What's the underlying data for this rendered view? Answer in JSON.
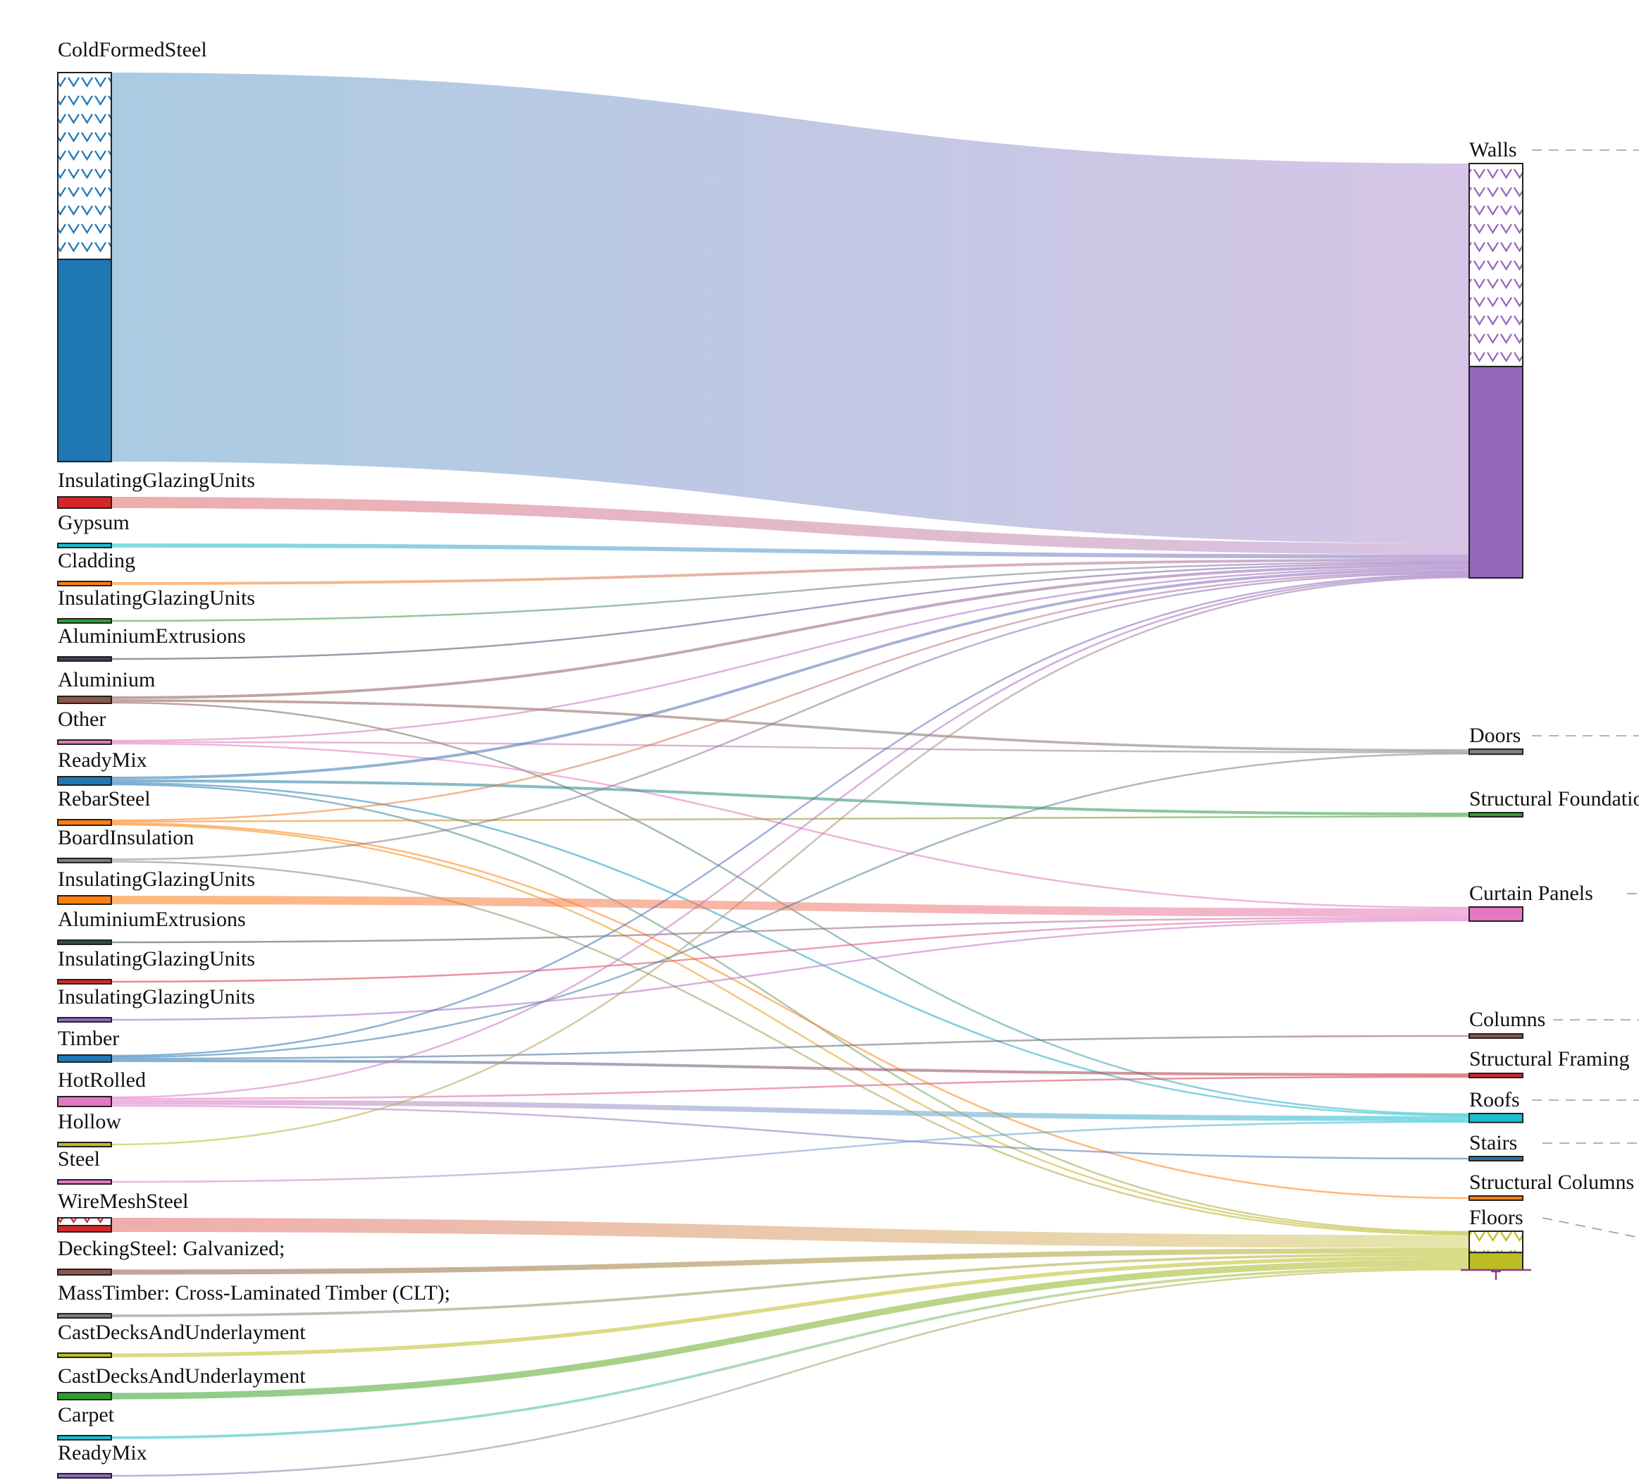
{
  "diagram": {
    "type": "sankey",
    "sources": [
      {
        "label": "ColdFormedSteel",
        "color": "#1f77b4",
        "partial_hatched": true
      },
      {
        "label": "InsulatingGlazingUnits",
        "color": "#d62728"
      },
      {
        "label": "Gypsum",
        "color": "#17becf"
      },
      {
        "label": "Cladding",
        "color": "#ff7f0e"
      },
      {
        "label": "InsulatingGlazingUnits",
        "color": "#2ca02c"
      },
      {
        "label": "AluminiumExtrusions",
        "color": "#453a5a"
      },
      {
        "label": "Aluminium",
        "color": "#8c564b"
      },
      {
        "label": "Other",
        "color": "#e377c2"
      },
      {
        "label": "ReadyMix",
        "color": "#1f77b4"
      },
      {
        "label": "RebarSteel",
        "color": "#ff7f0e"
      },
      {
        "label": "BoardInsulation",
        "color": "#7f7f7f"
      },
      {
        "label": "InsulatingGlazingUnits",
        "color": "#ff7f0e"
      },
      {
        "label": "AluminiumExtrusions",
        "color": "#2f4f3f"
      },
      {
        "label": "InsulatingGlazingUnits",
        "color": "#d62728"
      },
      {
        "label": "InsulatingGlazingUnits",
        "color": "#9467bd"
      },
      {
        "label": "Timber",
        "color": "#1f77b4"
      },
      {
        "label": "HotRolled",
        "color": "#e377c2"
      },
      {
        "label": "Hollow",
        "color": "#bcbd22"
      },
      {
        "label": "Steel",
        "color": "#e377c2"
      },
      {
        "label": "WireMeshSteel",
        "color": "#d62728",
        "partial_hatched": true
      },
      {
        "label": "DeckingSteel: Galvanized;",
        "color": "#8c564b"
      },
      {
        "label": "MassTimber: Cross-Laminated Timber (CLT);",
        "color": "#7f7f7f"
      },
      {
        "label": "CastDecksAndUnderlayment",
        "color": "#bcbd22"
      },
      {
        "label": "CastDecksAndUnderlayment",
        "color": "#2ca02c"
      },
      {
        "label": "Carpet",
        "color": "#17becf"
      },
      {
        "label": "ReadyMix",
        "color": "#9467bd"
      }
    ],
    "targets": [
      {
        "label": "Walls",
        "color": "#9467bd",
        "partial_hatched": true
      },
      {
        "label": "Doors",
        "color": "#7f7f7f"
      },
      {
        "label": "Structural Foundations",
        "color": "#2ca02c"
      },
      {
        "label": "Curtain Panels",
        "color": "#e377c2"
      },
      {
        "label": "Columns",
        "color": "#8c564b"
      },
      {
        "label": "Structural Framing",
        "color": "#d62728"
      },
      {
        "label": "Roofs",
        "color": "#17becf"
      },
      {
        "label": "Stairs",
        "color": "#1f77b4"
      },
      {
        "label": "Structural Columns",
        "color": "#ff7f0e"
      },
      {
        "label": "Floors",
        "color": "#bcbd22",
        "partial_hatched": true
      }
    ],
    "links": [
      {
        "source": 0,
        "target": 0,
        "value": 276
      },
      {
        "source": 1,
        "target": 0,
        "value": 8
      },
      {
        "source": 2,
        "target": 0,
        "value": 3
      },
      {
        "source": 3,
        "target": 0,
        "value": 2
      },
      {
        "source": 4,
        "target": 0,
        "value": 1
      },
      {
        "source": 5,
        "target": 0,
        "value": 1
      },
      {
        "source": 6,
        "target": 0,
        "value": 2
      },
      {
        "source": 6,
        "target": 1,
        "value": 2
      },
      {
        "source": 6,
        "target": 6,
        "value": 1
      },
      {
        "source": 7,
        "target": 0,
        "value": 1
      },
      {
        "source": 7,
        "target": 1,
        "value": 1
      },
      {
        "source": 7,
        "target": 3,
        "value": 1
      },
      {
        "source": 8,
        "target": 0,
        "value": 2
      },
      {
        "source": 8,
        "target": 2,
        "value": 2
      },
      {
        "source": 8,
        "target": 6,
        "value": 1
      },
      {
        "source": 8,
        "target": 9,
        "value": 1
      },
      {
        "source": 9,
        "target": 0,
        "value": 1
      },
      {
        "source": 9,
        "target": 2,
        "value": 1
      },
      {
        "source": 9,
        "target": 8,
        "value": 1
      },
      {
        "source": 9,
        "target": 9,
        "value": 1
      },
      {
        "source": 10,
        "target": 0,
        "value": 1
      },
      {
        "source": 10,
        "target": 9,
        "value": 1
      },
      {
        "source": 11,
        "target": 3,
        "value": 6
      },
      {
        "source": 12,
        "target": 3,
        "value": 1
      },
      {
        "source": 13,
        "target": 3,
        "value": 1
      },
      {
        "source": 14,
        "target": 3,
        "value": 1
      },
      {
        "source": 15,
        "target": 0,
        "value": 1
      },
      {
        "source": 15,
        "target": 1,
        "value": 1
      },
      {
        "source": 15,
        "target": 4,
        "value": 1
      },
      {
        "source": 15,
        "target": 5,
        "value": 2
      },
      {
        "source": 16,
        "target": 0,
        "value": 1
      },
      {
        "source": 16,
        "target": 5,
        "value": 1
      },
      {
        "source": 16,
        "target": 6,
        "value": 4
      },
      {
        "source": 16,
        "target": 7,
        "value": 1
      },
      {
        "source": 17,
        "target": 0,
        "value": 1
      },
      {
        "source": 18,
        "target": 6,
        "value": 1
      },
      {
        "source": 19,
        "target": 9,
        "value": 10
      },
      {
        "source": 20,
        "target": 9,
        "value": 4
      },
      {
        "source": 21,
        "target": 9,
        "value": 2
      },
      {
        "source": 22,
        "target": 9,
        "value": 3
      },
      {
        "source": 23,
        "target": 9,
        "value": 5
      },
      {
        "source": 24,
        "target": 9,
        "value": 2
      },
      {
        "source": 25,
        "target": 9,
        "value": 1
      }
    ]
  }
}
